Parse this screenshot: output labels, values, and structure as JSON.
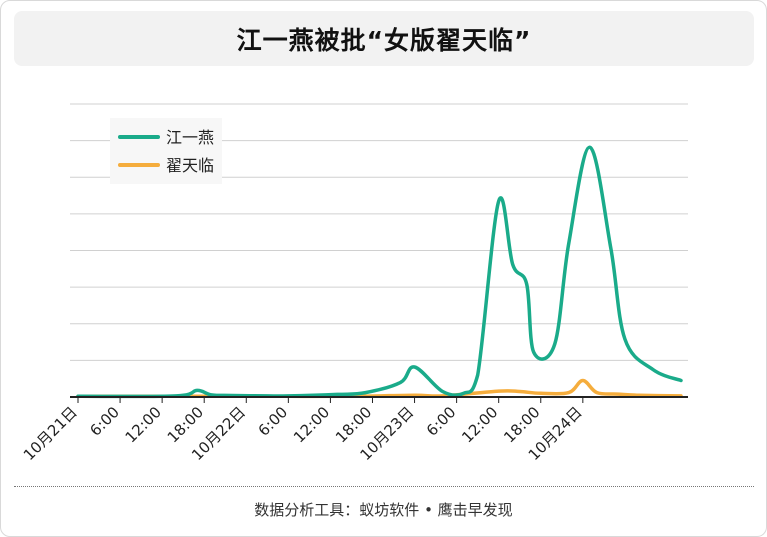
{
  "title": "江一燕被批“女版翟天临”",
  "footer": "数据分析工具：蚁坊软件 • 鹰击早发现",
  "chart_data": {
    "type": "line",
    "title": "江一燕被批“女版翟天临”",
    "xlabel": "",
    "ylabel": "",
    "x_range_hours": [
      0,
      87
    ],
    "x_tick_labels": [
      "10月21日",
      "6:00",
      "12:00",
      "18:00",
      "10月22日",
      "6:00",
      "12:00",
      "18:00",
      "10月23日",
      "6:00",
      "12:00",
      "18:00",
      "10月24日"
    ],
    "x_tick_hours": [
      0,
      6,
      12,
      18,
      24,
      30,
      36,
      42,
      48,
      54,
      60,
      66,
      72
    ],
    "ylim": [
      0,
      8
    ],
    "y_gridlines": [
      0,
      1,
      2,
      3,
      4,
      5,
      6,
      7,
      8
    ],
    "y_tick_labels_shown": false,
    "grid": true,
    "legend": "top-left",
    "series": [
      {
        "name": "江一燕",
        "color": "#1aab8a",
        "x": [
          0,
          14,
          17,
          19,
          22,
          27,
          30,
          37,
          41,
          46,
          48,
          52,
          55,
          57,
          60,
          62,
          64,
          65,
          68,
          70,
          73,
          76,
          78,
          82,
          86
        ],
        "y": [
          0.02,
          0.03,
          0.18,
          0.06,
          0.04,
          0.03,
          0.03,
          0.07,
          0.12,
          0.4,
          0.82,
          0.15,
          0.1,
          0.6,
          5.35,
          3.62,
          3.08,
          1.22,
          1.45,
          4.2,
          6.82,
          4.05,
          1.58,
          0.75,
          0.45
        ]
      },
      {
        "name": "翟天临",
        "color": "#f5ad3d",
        "x": [
          0,
          10,
          20,
          30,
          40,
          48,
          52,
          60,
          63,
          66,
          70,
          72,
          74,
          77,
          80,
          86
        ],
        "y": [
          0.02,
          0.02,
          0.02,
          0.02,
          0.02,
          0.05,
          0.03,
          0.16,
          0.15,
          0.1,
          0.12,
          0.45,
          0.12,
          0.08,
          0.05,
          0.03
        ]
      }
    ]
  }
}
